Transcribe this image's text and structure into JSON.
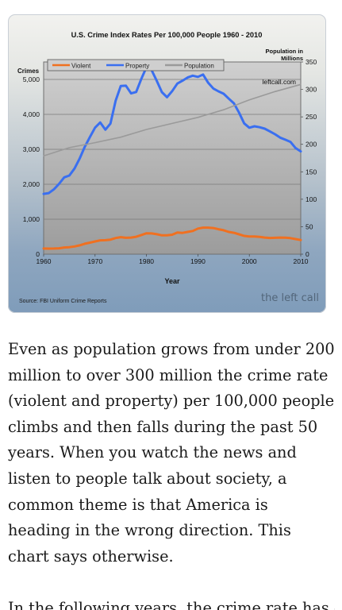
{
  "chart_data": {
    "type": "line",
    "title": "U.S. Crime Index Rates Per 100,000 People 1960 - 2010",
    "ylabel": "Crimes",
    "y2label": "Population in Millions",
    "xlabel": "Year",
    "source": "Source: FBI Uniform Crime Reports",
    "watermark": "the left call",
    "site_label": "leftcall.com",
    "xlim": [
      1960,
      2010
    ],
    "ylim": [
      0,
      5500
    ],
    "y2lim": [
      0,
      350
    ],
    "x_ticks": [
      1960,
      1970,
      1980,
      1990,
      2000,
      2010
    ],
    "y_ticks": [
      0,
      1000,
      2000,
      3000,
      4000,
      5000
    ],
    "y_tick_labels": [
      "0",
      "1,000",
      "2,000",
      "3,000",
      "4,000",
      "5,000"
    ],
    "y2_ticks": [
      0,
      50,
      100,
      150,
      200,
      250,
      300,
      350
    ],
    "grid": true,
    "legend_position": "top-left",
    "series": [
      {
        "name": "Violent",
        "color": "#f07020",
        "axis": "left",
        "x": [
          1960,
          1961,
          1962,
          1963,
          1964,
          1965,
          1966,
          1967,
          1968,
          1969,
          1970,
          1971,
          1972,
          1973,
          1974,
          1975,
          1976,
          1977,
          1978,
          1979,
          1980,
          1981,
          1982,
          1983,
          1984,
          1985,
          1986,
          1987,
          1988,
          1989,
          1990,
          1991,
          1992,
          1993,
          1994,
          1995,
          1996,
          1997,
          1998,
          1999,
          2000,
          2001,
          2002,
          2003,
          2004,
          2005,
          2006,
          2007,
          2008,
          2009,
          2010
        ],
        "values": [
          161,
          158,
          162,
          168,
          190,
          200,
          220,
          253,
          298,
          329,
          364,
          396,
          401,
          417,
          461,
          487,
          468,
          476,
          498,
          548,
          597,
          594,
          571,
          538,
          539,
          557,
          620,
          610,
          637,
          663,
          732,
          758,
          758,
          747,
          714,
          685,
          637,
          611,
          568,
          523,
          507,
          504,
          494,
          476,
          463,
          469,
          474,
          472,
          459,
          431,
          404
        ]
      },
      {
        "name": "Property",
        "color": "#3a6ff0",
        "axis": "left",
        "x": [
          1960,
          1961,
          1962,
          1963,
          1964,
          1965,
          1966,
          1967,
          1968,
          1969,
          1970,
          1971,
          1972,
          1973,
          1974,
          1975,
          1976,
          1977,
          1978,
          1979,
          1980,
          1981,
          1982,
          1983,
          1984,
          1985,
          1986,
          1987,
          1988,
          1989,
          1990,
          1991,
          1992,
          1993,
          1994,
          1995,
          1996,
          1997,
          1998,
          1999,
          2000,
          2001,
          2002,
          2003,
          2004,
          2005,
          2006,
          2007,
          2008,
          2009,
          2010
        ],
        "values": [
          1726,
          1748,
          1857,
          2012,
          2197,
          2249,
          2450,
          2736,
          3071,
          3351,
          3621,
          3768,
          3561,
          3737,
          4389,
          4811,
          4820,
          4601,
          4642,
          5017,
          5353,
          5263,
          4956,
          4637,
          4492,
          4666,
          4881,
          4963,
          5054,
          5107,
          5073,
          5140,
          4903,
          4740,
          4660,
          4591,
          4451,
          4316,
          4052,
          3743,
          3618,
          3658,
          3631,
          3591,
          3514,
          3431,
          3335,
          3276,
          3214,
          3036,
          2942
        ]
      },
      {
        "name": "Population",
        "color": "#9a9a9a",
        "axis": "right",
        "x": [
          1960,
          1965,
          1970,
          1975,
          1980,
          1985,
          1990,
          1995,
          2000,
          2005,
          2010
        ],
        "values": [
          179,
          194,
          203,
          213,
          227,
          238,
          249,
          263,
          281,
          296,
          309
        ]
      }
    ]
  },
  "article": {
    "paragraph": "Even as population grows from under 200 million to over 300 million the crime rate (violent and property) per 100,000 people climbs and then falls during the past 50 years. When you watch the news and listen to people talk about society, a common theme is that America is heading in the wrong direction. This chart says otherwise.",
    "next_paragraph_start": "In the following years, the crime rate has continued..."
  }
}
